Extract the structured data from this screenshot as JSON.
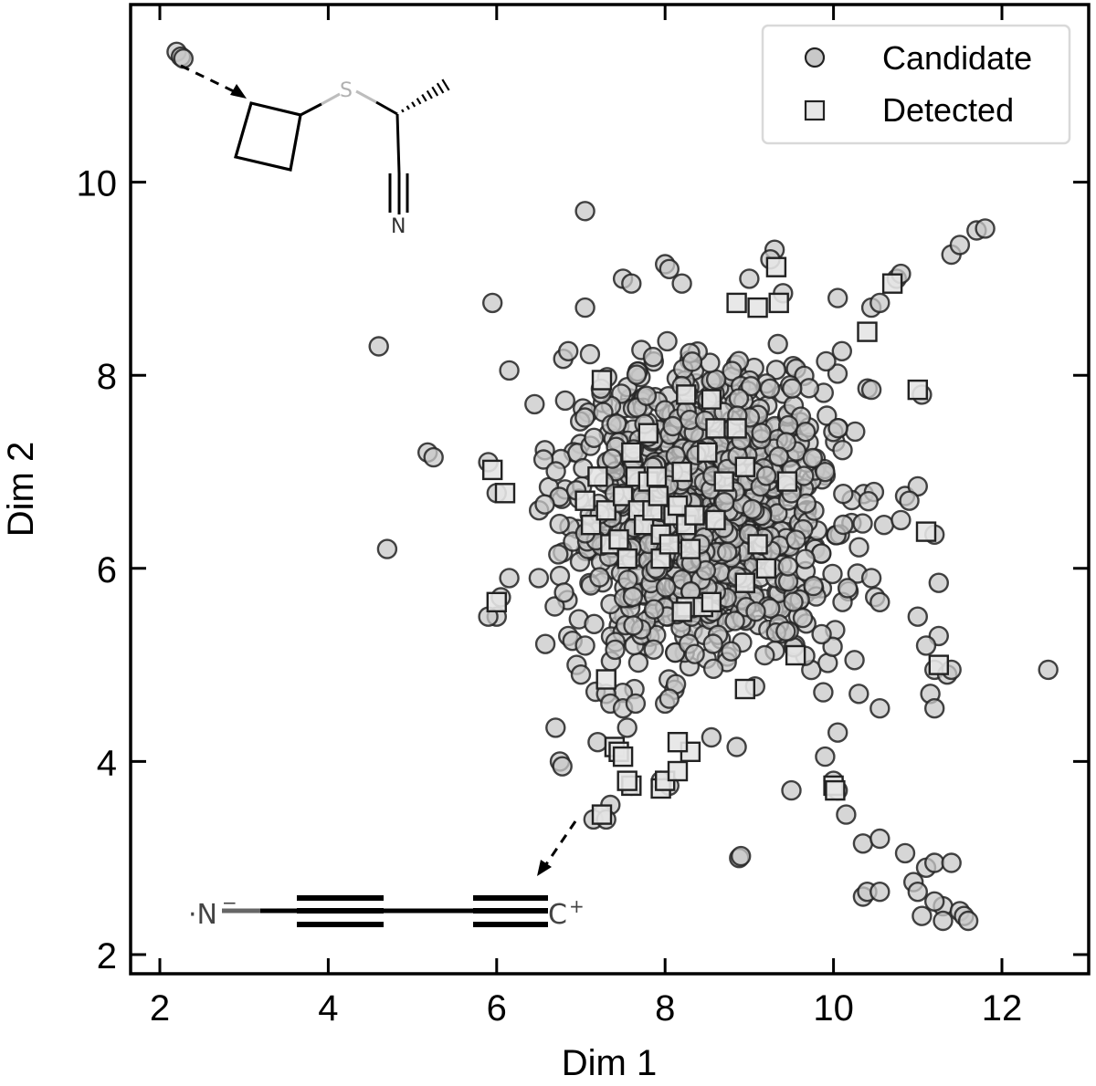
{
  "chart_data": {
    "type": "scatter",
    "title": "",
    "xlabel": "Dim 1",
    "ylabel": "Dim 2",
    "xlim": [
      1.65,
      13.05
    ],
    "ylim": [
      1.8,
      11.85
    ],
    "xticks": [
      2,
      4,
      6,
      8,
      10,
      12
    ],
    "yticks": [
      2,
      4,
      6,
      8,
      10
    ],
    "xtick_labels": [
      "2",
      "4",
      "6",
      "8",
      "10",
      "12"
    ],
    "ytick_labels": [
      "2",
      "4",
      "6",
      "8",
      "10"
    ],
    "grid": false,
    "tick_direction": "in",
    "ticks_on_all_sides": true,
    "legend_position": "upper right",
    "legend": [
      {
        "label": "Candidate",
        "marker": "circle",
        "fill": "#c8c8c8",
        "edge": "#2a2a2a"
      },
      {
        "label": "Detected",
        "marker": "square",
        "fill": "#e6e6e6",
        "edge": "#2a2a2a"
      }
    ],
    "series": [
      {
        "name": "Candidate",
        "marker": "circle",
        "color": "#c8c8c8",
        "edgecolor": "#222222",
        "alpha": 0.75,
        "note": "Representative sample (~1000+ points in original); main cloud centered near (8.5, 6.5)",
        "points": [
          [
            2.2,
            11.35
          ],
          [
            2.25,
            11.3
          ],
          [
            2.28,
            11.28
          ],
          [
            7.05,
            9.7
          ],
          [
            4.6,
            8.3
          ],
          [
            4.7,
            6.2
          ],
          [
            5.95,
            8.75
          ],
          [
            6.15,
            8.05
          ],
          [
            5.18,
            7.2
          ],
          [
            5.25,
            7.15
          ],
          [
            5.9,
            7.1
          ],
          [
            6.0,
            6.78
          ],
          [
            6.45,
            7.7
          ],
          [
            6.85,
            8.25
          ],
          [
            7.05,
            8.7
          ],
          [
            7.5,
            9.0
          ],
          [
            7.6,
            8.95
          ],
          [
            8.0,
            9.15
          ],
          [
            8.05,
            9.1
          ],
          [
            8.2,
            8.95
          ],
          [
            9.3,
            9.3
          ],
          [
            9.25,
            9.2
          ],
          [
            9.0,
            9.0
          ],
          [
            9.4,
            8.85
          ],
          [
            10.05,
            8.8
          ],
          [
            10.45,
            8.7
          ],
          [
            10.55,
            8.75
          ],
          [
            10.75,
            9.0
          ],
          [
            10.8,
            9.05
          ],
          [
            11.4,
            9.25
          ],
          [
            11.5,
            9.35
          ],
          [
            11.7,
            9.5
          ],
          [
            11.8,
            9.52
          ],
          [
            10.1,
            8.25
          ],
          [
            10.45,
            7.85
          ],
          [
            11.05,
            7.8
          ],
          [
            10.85,
            6.75
          ],
          [
            11.0,
            6.85
          ],
          [
            11.2,
            6.35
          ],
          [
            12.55,
            4.95
          ],
          [
            8.88,
            3.0
          ],
          [
            8.9,
            3.02
          ],
          [
            10.35,
            2.6
          ],
          [
            10.4,
            2.65
          ],
          [
            10.55,
            2.65
          ],
          [
            10.85,
            3.05
          ],
          [
            10.95,
            2.75
          ],
          [
            11.0,
            2.65
          ],
          [
            11.1,
            2.9
          ],
          [
            11.2,
            2.95
          ],
          [
            11.4,
            2.95
          ],
          [
            11.3,
            2.5
          ],
          [
            11.5,
            2.45
          ],
          [
            11.55,
            2.4
          ],
          [
            11.6,
            2.35
          ],
          [
            11.3,
            2.35
          ],
          [
            11.05,
            2.4
          ],
          [
            11.2,
            2.55
          ],
          [
            10.0,
            3.8
          ],
          [
            10.05,
            3.7
          ],
          [
            10.15,
            3.45
          ],
          [
            10.35,
            3.15
          ],
          [
            10.55,
            3.2
          ],
          [
            9.5,
            3.7
          ],
          [
            9.9,
            4.05
          ],
          [
            10.05,
            4.3
          ],
          [
            8.85,
            4.15
          ],
          [
            8.55,
            4.25
          ],
          [
            8.05,
            3.75
          ],
          [
            7.95,
            3.8
          ],
          [
            7.6,
            3.75
          ],
          [
            7.35,
            3.55
          ],
          [
            7.25,
            3.45
          ],
          [
            7.15,
            3.4
          ],
          [
            7.3,
            3.4
          ],
          [
            6.7,
            4.35
          ],
          [
            6.75,
            4.0
          ],
          [
            6.78,
            3.95
          ],
          [
            7.2,
            4.2
          ],
          [
            7.3,
            4.7
          ],
          [
            7.35,
            4.6
          ],
          [
            7.5,
            4.55
          ],
          [
            7.55,
            4.35
          ],
          [
            7.65,
            4.6
          ],
          [
            8.0,
            4.6
          ],
          [
            8.05,
            4.65
          ],
          [
            11.2,
            4.95
          ],
          [
            11.35,
            4.9
          ],
          [
            11.4,
            4.95
          ],
          [
            11.15,
            4.7
          ],
          [
            11.2,
            4.55
          ],
          [
            11.25,
            5.3
          ],
          [
            11.1,
            5.2
          ],
          [
            11.0,
            5.5
          ],
          [
            11.25,
            5.85
          ],
          [
            10.55,
            4.55
          ],
          [
            10.3,
            4.7
          ],
          [
            10.25,
            5.05
          ],
          [
            10.55,
            5.65
          ],
          [
            10.45,
            5.9
          ],
          [
            10.6,
            6.45
          ],
          [
            10.8,
            6.5
          ],
          [
            10.9,
            6.7
          ],
          [
            6.0,
            5.5
          ],
          [
            6.05,
            5.7
          ],
          [
            5.9,
            5.5
          ],
          [
            6.15,
            5.9
          ],
          [
            6.5,
            5.9
          ],
          [
            6.8,
            5.75
          ],
          [
            6.85,
            5.3
          ],
          [
            6.9,
            5.25
          ],
          [
            6.95,
            5.0
          ],
          [
            7.0,
            4.9
          ],
          [
            7.05,
            5.2
          ]
        ],
        "cluster": {
          "center": [
            8.45,
            6.55
          ],
          "spread": [
            1.05,
            1.05
          ],
          "approx_count": 1100,
          "bounds": {
            "x": [
              6.5,
              10.5
            ],
            "y": [
              4.7,
              8.4
            ]
          }
        }
      },
      {
        "name": "Detected",
        "marker": "square",
        "color": "#e6e6e6",
        "edgecolor": "#222222",
        "alpha": 0.9,
        "points": [
          [
            5.95,
            7.02
          ],
          [
            6.1,
            6.78
          ],
          [
            6.0,
            5.65
          ],
          [
            7.25,
            7.95
          ],
          [
            7.2,
            6.95
          ],
          [
            7.05,
            6.7
          ],
          [
            7.12,
            6.45
          ],
          [
            7.3,
            6.6
          ],
          [
            7.35,
            6.25
          ],
          [
            7.45,
            6.3
          ],
          [
            7.5,
            6.75
          ],
          [
            7.6,
            7.2
          ],
          [
            7.55,
            6.1
          ],
          [
            7.65,
            6.95
          ],
          [
            7.68,
            6.6
          ],
          [
            7.75,
            6.45
          ],
          [
            7.8,
            6.9
          ],
          [
            7.85,
            6.6
          ],
          [
            7.9,
            6.95
          ],
          [
            7.92,
            6.75
          ],
          [
            7.95,
            6.35
          ],
          [
            7.95,
            6.1
          ],
          [
            8.05,
            6.25
          ],
          [
            8.1,
            6.55
          ],
          [
            8.15,
            6.65
          ],
          [
            8.2,
            7.0
          ],
          [
            8.25,
            6.45
          ],
          [
            8.3,
            6.2
          ],
          [
            8.35,
            6.55
          ],
          [
            8.25,
            5.6
          ],
          [
            8.2,
            5.55
          ],
          [
            7.8,
            7.4
          ],
          [
            8.25,
            7.8
          ],
          [
            8.55,
            7.75
          ],
          [
            8.6,
            7.45
          ],
          [
            8.85,
            7.45
          ],
          [
            8.95,
            7.05
          ],
          [
            8.5,
            7.2
          ],
          [
            8.7,
            6.9
          ],
          [
            8.6,
            6.5
          ],
          [
            9.1,
            6.25
          ],
          [
            9.2,
            6.0
          ],
          [
            8.45,
            5.6
          ],
          [
            8.55,
            5.65
          ],
          [
            8.95,
            5.85
          ],
          [
            9.45,
            6.9
          ],
          [
            9.55,
            5.1
          ],
          [
            8.95,
            4.75
          ],
          [
            7.3,
            4.85
          ],
          [
            7.4,
            4.15
          ],
          [
            7.45,
            4.1
          ],
          [
            7.5,
            4.05
          ],
          [
            7.6,
            3.75
          ],
          [
            7.55,
            3.8
          ],
          [
            7.95,
            3.72
          ],
          [
            8.0,
            3.8
          ],
          [
            8.15,
            3.9
          ],
          [
            8.3,
            4.1
          ],
          [
            8.15,
            4.2
          ],
          [
            7.25,
            3.45
          ],
          [
            9.1,
            8.7
          ],
          [
            9.35,
            8.75
          ],
          [
            9.32,
            9.12
          ],
          [
            8.85,
            8.75
          ],
          [
            10.4,
            8.45
          ],
          [
            10.7,
            8.95
          ],
          [
            11.0,
            7.85
          ],
          [
            11.1,
            6.38
          ],
          [
            11.25,
            5.0
          ],
          [
            10.0,
            3.75
          ],
          [
            10.02,
            3.7
          ]
        ]
      }
    ],
    "annotations": [
      {
        "type": "molecule-inset",
        "position": "upper left",
        "description": "Cyclobutyl thioether nitrile: cyclobutane ring – S – CH(CH3, hashed wedge) – C≡N",
        "atom_labels": [
          "S",
          "N"
        ],
        "arrow_from": [
          2.25,
          11.3
        ],
        "arrow_style": "dashed"
      },
      {
        "type": "molecule-inset",
        "position": "lower left",
        "description": "Linear chain ·N⁻–C≡C–C≡C⁺ (cyanobutadiynyl-type)",
        "atom_labels": [
          "·N⁻",
          "C⁺"
        ],
        "arrow_from": [
          7.3,
          3.45
        ],
        "arrow_style": "dashed"
      }
    ]
  },
  "axes": {
    "x": {
      "label": "Dim 1",
      "ticks": [
        "2",
        "4",
        "6",
        "8",
        "10",
        "12"
      ]
    },
    "y": {
      "label": "Dim 2",
      "ticks": [
        "2",
        "4",
        "6",
        "8",
        "10"
      ]
    }
  },
  "legend": {
    "items": [
      {
        "label": "Candidate",
        "marker": "circle"
      },
      {
        "label": "Detected",
        "marker": "square"
      }
    ]
  },
  "insets": {
    "top": {
      "atoms": {
        "s": "S",
        "n": "N"
      }
    },
    "bottom": {
      "atoms": {
        "n": "·N",
        "n_charge": "−",
        "c": "C",
        "c_charge": "+"
      }
    }
  },
  "colors": {
    "candidate_fill": "#c8c8c8",
    "detected_fill": "#e6e6e6",
    "marker_edge": "#222222",
    "axis": "#000000",
    "legend_border": "#d9d9d9",
    "sulfur_bond": "#bdbdbd"
  }
}
